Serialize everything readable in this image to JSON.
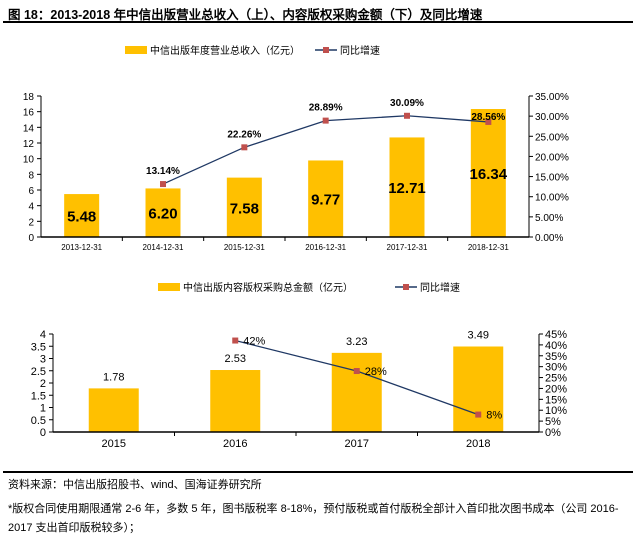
{
  "title": "图 18：2013-2018 年中信出版营业总收入（上）、内容版权采购金额（下）及同比增速",
  "source": "资料来源：中信出版招股书、wind、国海证券研究所",
  "note": "*版权合同使用期限通常 2-6 年，多数 5 年，图书版税率 8-18%，预付版税或首付版税全部计入首印批次图书成本（公司 2016-2017 支出首印版税较多）；",
  "colors": {
    "bar": "#FFC000",
    "line": "#1F3864",
    "marker": "#C0504D"
  },
  "chart_data": [
    {
      "type": "bar+line",
      "categories": [
        "2013-12-31",
        "2014-12-31",
        "2015-12-31",
        "2016-12-31",
        "2017-12-31",
        "2018-12-31"
      ],
      "series": [
        {
          "name": "中信出版年度营业总收入（亿元）",
          "type": "bar",
          "axis": "left",
          "values": [
            5.48,
            6.2,
            7.58,
            9.77,
            12.71,
            16.34
          ],
          "labels": [
            "5.48",
            "6.20",
            "7.58",
            "9.77",
            "12.71",
            "16.34"
          ]
        },
        {
          "name": "同比增速",
          "type": "line",
          "axis": "right",
          "values": [
            null,
            13.14,
            22.26,
            28.89,
            30.09,
            28.56
          ],
          "labels": [
            "",
            "13.14%",
            "22.26%",
            "28.89%",
            "30.09%",
            "28.56%"
          ]
        }
      ],
      "ylim": [
        0,
        18
      ],
      "yticks": [
        "0",
        "2",
        "4",
        "6",
        "8",
        "10",
        "12",
        "14",
        "16",
        "18"
      ],
      "y2lim": [
        0,
        35
      ],
      "y2ticks": [
        "0.00%",
        "5.00%",
        "10.00%",
        "15.00%",
        "20.00%",
        "25.00%",
        "30.00%",
        "35.00%"
      ],
      "legend": "top-center"
    },
    {
      "type": "bar+line",
      "categories": [
        "2015",
        "2016",
        "2017",
        "2018"
      ],
      "series": [
        {
          "name": "中信出版内容版权采购总金额（亿元）",
          "type": "bar",
          "axis": "left",
          "values": [
            1.78,
            2.53,
            3.23,
            3.49
          ],
          "labels": [
            "1.78",
            "2.53",
            "3.23",
            "3.49"
          ]
        },
        {
          "name": "同比增速",
          "type": "line",
          "axis": "right",
          "values": [
            null,
            42,
            28,
            8
          ],
          "labels": [
            "",
            "42%",
            "28%",
            "8%"
          ]
        }
      ],
      "ylim": [
        0,
        4
      ],
      "yticks": [
        "0",
        "0.5",
        "1",
        "1.5",
        "2",
        "2.5",
        "3",
        "3.5",
        "4"
      ],
      "y2lim": [
        0,
        45
      ],
      "y2ticks": [
        "0%",
        "5%",
        "10%",
        "15%",
        "20%",
        "25%",
        "30%",
        "35%",
        "40%",
        "45%"
      ],
      "legend": "top-center"
    }
  ]
}
